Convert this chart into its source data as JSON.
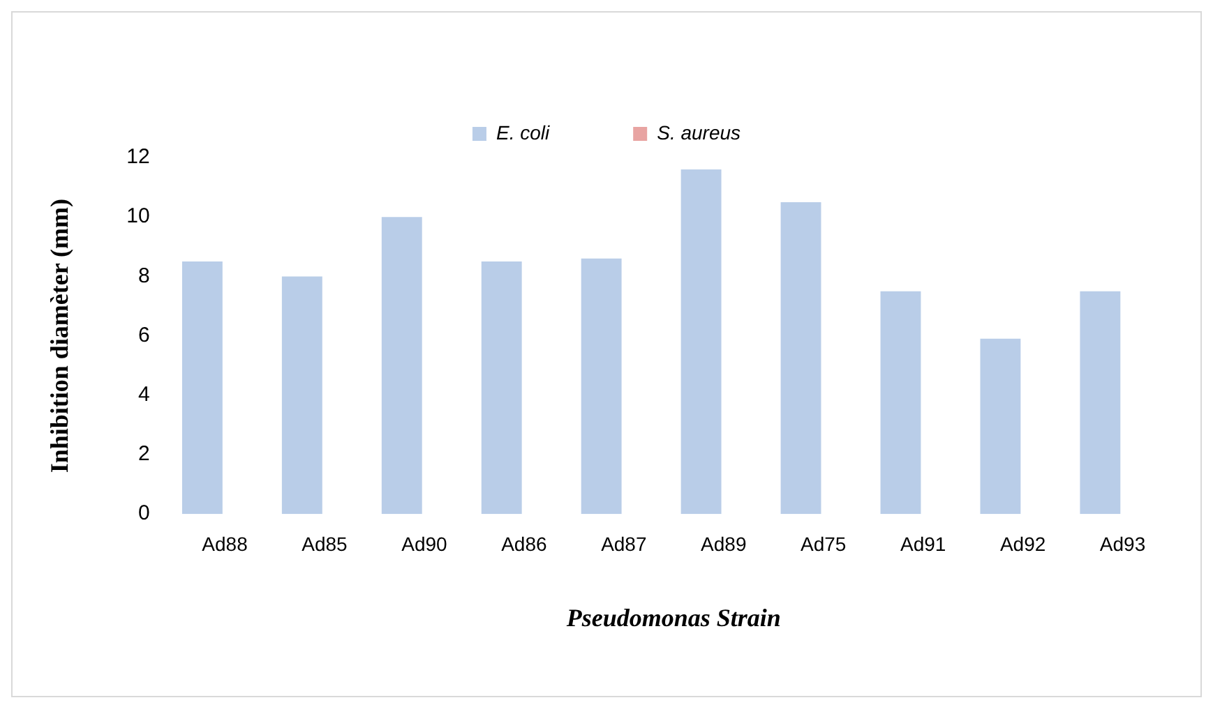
{
  "chart_data": {
    "type": "bar",
    "xlabel": "Pseudomonas Strain",
    "ylabel": "Inhibition diamèter (mm)",
    "categories": [
      "Ad88",
      "Ad85",
      "Ad90",
      "Ad86",
      "Ad87",
      "Ad89",
      "Ad75",
      "Ad91",
      "Ad92",
      "Ad93"
    ],
    "series": [
      {
        "name": "E. coli",
        "color": "#b9cde8",
        "values": [
          8.5,
          8,
          10,
          8.5,
          8.6,
          11.6,
          10.5,
          7.5,
          5.9,
          7.5
        ]
      },
      {
        "name": "S. aureus",
        "color": "#e8a4a2",
        "values": [
          0,
          0,
          0,
          0,
          0,
          0,
          0,
          0,
          0,
          0
        ]
      }
    ],
    "ylim": [
      0,
      12
    ],
    "yticks": [
      0,
      2,
      4,
      6,
      8,
      10,
      12
    ],
    "grid": false,
    "legend": "top"
  }
}
